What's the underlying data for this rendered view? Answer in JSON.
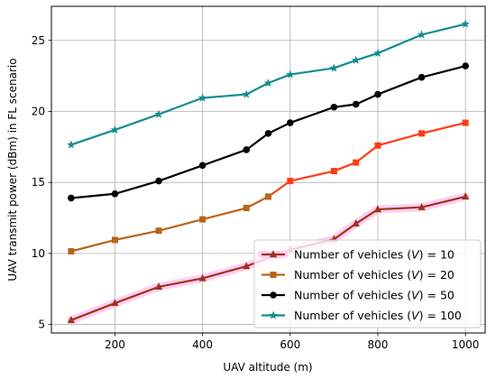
{
  "chart_data": {
    "type": "line",
    "xlabel": "UAV altitude (m)",
    "ylabel": "UAV transmit power (dBm) in FL scenario",
    "xlim": [
      55,
      1045
    ],
    "ylim": [
      4.4,
      27.4
    ],
    "xticks": [
      200,
      400,
      600,
      800,
      1000
    ],
    "yticks": [
      5,
      10,
      15,
      20,
      25
    ],
    "grid": true,
    "legend_position": "lower-right",
    "series": [
      {
        "name": "Number of vehicles (V) = 10",
        "name_prefix": "Number of vehicles (",
        "name_var": "V",
        "name_suffix": ") = 10",
        "color": "#a0331a",
        "halo": "#ffd0f5",
        "marker": "triangle",
        "x": [
          100,
          200,
          300,
          400,
          500,
          600,
          700,
          750,
          800,
          900,
          1000
        ],
        "y": [
          5.3,
          6.5,
          7.65,
          8.25,
          9.1,
          10.25,
          11.0,
          12.1,
          13.1,
          13.25,
          14.0
        ]
      },
      {
        "name": "Number of vehicles (V) = 20",
        "name_prefix": "Number of vehicles (",
        "name_var": "V",
        "name_suffix": ") = 20",
        "color": "#b8651c",
        "color_end": "#ff3b14",
        "marker": "square",
        "x": [
          100,
          200,
          300,
          400,
          500,
          550,
          600,
          700,
          750,
          800,
          900,
          1000
        ],
        "y": [
          10.15,
          10.95,
          11.6,
          12.4,
          13.2,
          14.0,
          15.1,
          15.8,
          16.4,
          17.6,
          18.45,
          19.2
        ]
      },
      {
        "name": "Number of vehicles (V) = 50",
        "name_prefix": "Number of vehicles (",
        "name_var": "V",
        "name_suffix": ") = 50",
        "color": "#000000",
        "marker": "circle",
        "x": [
          100,
          200,
          300,
          400,
          500,
          550,
          600,
          700,
          750,
          800,
          900,
          1000
        ],
        "y": [
          13.9,
          14.2,
          15.1,
          16.2,
          17.3,
          18.45,
          19.2,
          20.3,
          20.5,
          21.2,
          22.4,
          23.2
        ]
      },
      {
        "name": "Number of vehicles (V) = 100",
        "name_prefix": "Number of vehicles (",
        "name_var": "V",
        "name_suffix": ") = 100",
        "color": "#148c8c",
        "marker": "star",
        "x": [
          100,
          200,
          300,
          400,
          500,
          550,
          600,
          700,
          750,
          800,
          900,
          1000
        ],
        "y": [
          17.65,
          18.7,
          19.8,
          20.95,
          21.2,
          22.0,
          22.6,
          23.05,
          23.6,
          24.1,
          25.4,
          26.15
        ]
      }
    ]
  }
}
